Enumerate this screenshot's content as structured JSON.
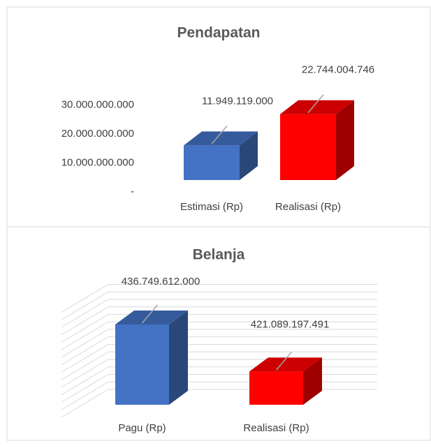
{
  "chart_data": [
    {
      "type": "bar3d",
      "title": "Pendapatan",
      "categories": [
        "Estimasi (Rp)",
        "Realisasi (Rp)"
      ],
      "values": [
        11949119000,
        22744004746
      ],
      "value_labels": [
        "11.949.119.000",
        "22.744.004.746"
      ],
      "colors": [
        "#4472c4",
        "#ff0000"
      ],
      "ylim": [
        0,
        30000000000
      ],
      "yticks": [
        {
          "value": 0,
          "label": "-"
        },
        {
          "value": 10000000000,
          "label": "10.000.000.000"
        },
        {
          "value": 20000000000,
          "label": "20.000.000.000"
        },
        {
          "value": 30000000000,
          "label": "30.000.000.000"
        }
      ],
      "grid": false
    },
    {
      "type": "bar3d",
      "title": "Belanja",
      "categories": [
        "Pagu (Rp)",
        "Realisasi (Rp)"
      ],
      "values": [
        436749612000,
        421089197491
      ],
      "value_labels": [
        "436.749.612.000",
        "421.089.197.491"
      ],
      "colors": [
        "#4472c4",
        "#ff0000"
      ],
      "ylim": [
        410000000000,
        445000000000
      ],
      "yticks": [
        410000000000,
        412500000000,
        415000000000,
        417500000000,
        420000000000,
        422500000000,
        425000000000,
        427500000000,
        430000000000,
        432500000000,
        435000000000,
        437500000000,
        440000000000,
        442500000000,
        445000000000
      ],
      "grid": true
    }
  ]
}
